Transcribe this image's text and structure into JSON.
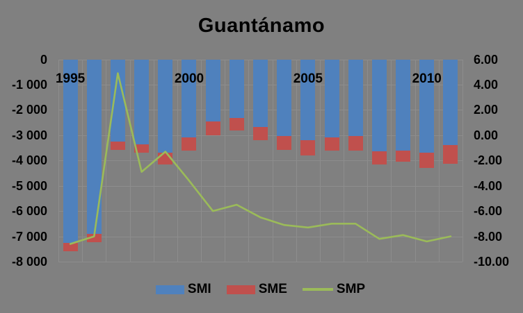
{
  "title": "Guantánamo",
  "colors": {
    "background": "#808080",
    "text": "#000000",
    "smi_blue": "#4F81BD",
    "sme_red": "#C0504D",
    "smp_green": "#9BBB59",
    "gridline": "#8D8D8D"
  },
  "left_axis": {
    "tick_labels": [
      "0",
      "-1 000",
      "-2 000",
      "-3 000",
      "-4 000",
      "-5 000",
      "-6 000",
      "-7 000",
      "-8 000"
    ],
    "max": 0,
    "min": -8000
  },
  "right_axis": {
    "tick_labels": [
      "6.00",
      "4.00",
      "2.00",
      "0.00",
      "-2.00",
      "-4.00",
      "-6.00",
      "-8.00",
      "-10.00"
    ],
    "max": 6,
    "min": -10
  },
  "x_axis": {
    "visible_tick_labels": [
      "1995",
      "2000",
      "2005",
      "2010"
    ],
    "tick_category_indexes": [
      0,
      5,
      10,
      15
    ]
  },
  "legend": {
    "items": [
      {
        "label": "SMI",
        "type": "bar",
        "color": "#4F81BD"
      },
      {
        "label": "SME",
        "type": "bar",
        "color": "#C0504D"
      },
      {
        "label": "SMP",
        "type": "line",
        "color": "#9BBB59"
      }
    ]
  },
  "chart_data": {
    "type": "bar",
    "subtype": "stacked-negative-bars-with-line-overlay",
    "title": "Guantánamo",
    "categories": [
      1995,
      1996,
      1997,
      1998,
      1999,
      2000,
      2001,
      2002,
      2003,
      2004,
      2005,
      2006,
      2007,
      2008,
      2009,
      2010,
      2011
    ],
    "series": [
      {
        "name": "SMI",
        "type": "bar",
        "axis": "left",
        "color": "#4F81BD",
        "values": [
          -7260,
          -6900,
          -3250,
          -3360,
          -3690,
          -3090,
          -2460,
          -2320,
          -2680,
          -3030,
          -3200,
          -3090,
          -3020,
          -3640,
          -3620,
          -3690,
          -3390
        ]
      },
      {
        "name": "SME",
        "type": "bar",
        "axis": "left",
        "stacked_on": "SMI",
        "color": "#C0504D",
        "values": [
          -330,
          -330,
          -330,
          -330,
          -470,
          -520,
          -550,
          -490,
          -520,
          -550,
          -600,
          -520,
          -580,
          -530,
          -440,
          -610,
          -740
        ]
      },
      {
        "name": "SMP",
        "type": "line",
        "axis": "right",
        "color": "#9BBB59",
        "values": [
          -8.6,
          -8.0,
          4.9,
          -2.9,
          -1.3,
          -3.6,
          -6.0,
          -5.5,
          -6.5,
          -7.1,
          -7.3,
          -7.0,
          -7.0,
          -8.2,
          -7.9,
          -8.4,
          -8.0
        ]
      }
    ],
    "left_axis_range": [
      -8000,
      0
    ],
    "right_axis_range": [
      -10,
      6
    ],
    "grid": true,
    "legend_position": "bottom"
  }
}
